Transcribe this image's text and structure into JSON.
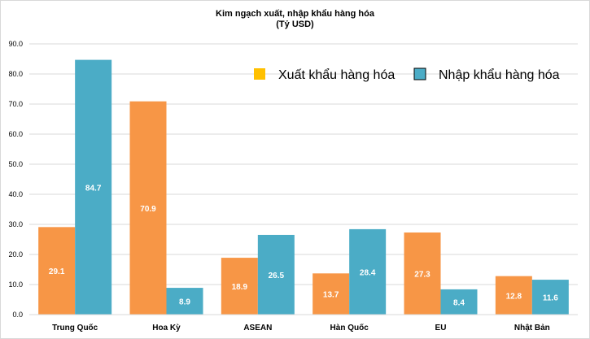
{
  "chart_data": {
    "type": "bar",
    "title": "Kim ngạch xuất, nhập khẩu hàng hóa",
    "subtitle": "(Tỷ USD)",
    "categories": [
      "Trung Quốc",
      "Hoa Kỳ",
      "ASEAN",
      "Hàn Quốc",
      "EU",
      "Nhật Bản"
    ],
    "series": [
      {
        "name": "Xuất khẩu hàng hóa",
        "values": [
          29.1,
          70.9,
          18.9,
          13.7,
          27.3,
          12.8
        ],
        "color": "#f79646",
        "legend_color": "#ffc000"
      },
      {
        "name": "Nhập khẩu hàng hóa",
        "values": [
          84.7,
          8.9,
          26.5,
          28.4,
          8.4,
          11.6
        ],
        "color": "#4bacc6",
        "legend_color": "#4bacc6"
      }
    ],
    "ylim": [
      0,
      90
    ],
    "yticks": [
      "0.0",
      "10.0",
      "20.0",
      "30.0",
      "40.0",
      "50.0",
      "60.0",
      "70.0",
      "80.0",
      "90.0"
    ],
    "grid": true,
    "legend_position": "top-right",
    "data_labels": true
  }
}
